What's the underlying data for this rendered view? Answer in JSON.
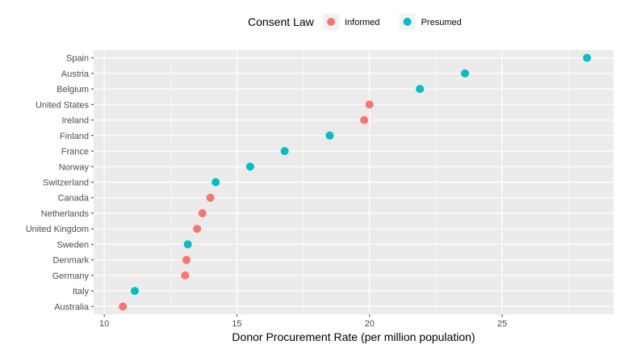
{
  "chart_data": {
    "type": "scatter",
    "title": "",
    "xlabel": "Donor Procurement Rate (per million population)",
    "ylabel": "",
    "xlim": [
      9.6,
      29.2
    ],
    "x_ticks": [
      10,
      15,
      20,
      25
    ],
    "grid": true,
    "legend": {
      "title": "Consent Law",
      "placement": "top",
      "entries": [
        {
          "name": "Informed",
          "color": "#F8766D"
        },
        {
          "name": "Presumed",
          "color": "#00BFC4"
        }
      ]
    },
    "categories": [
      "Spain",
      "Austria",
      "Belgium",
      "United States",
      "Ireland",
      "Finland",
      "France",
      "Norway",
      "Switzerland",
      "Canada",
      "Netherlands",
      "United Kingdom",
      "Sweden",
      "Denmark",
      "Germany",
      "Italy",
      "Australia"
    ],
    "series": [
      {
        "name": "Informed",
        "color": "#F8766D",
        "points": [
          {
            "country": "United States",
            "x": 20.0
          },
          {
            "country": "Ireland",
            "x": 19.8
          },
          {
            "country": "Canada",
            "x": 14.0
          },
          {
            "country": "Netherlands",
            "x": 13.7
          },
          {
            "country": "United Kingdom",
            "x": 13.5
          },
          {
            "country": "Denmark",
            "x": 13.1
          },
          {
            "country": "Germany",
            "x": 13.05
          },
          {
            "country": "Australia",
            "x": 10.7
          }
        ]
      },
      {
        "name": "Presumed",
        "color": "#00BFC4",
        "points": [
          {
            "country": "Spain",
            "x": 28.2
          },
          {
            "country": "Austria",
            "x": 23.6
          },
          {
            "country": "Belgium",
            "x": 21.9
          },
          {
            "country": "Finland",
            "x": 18.5
          },
          {
            "country": "France",
            "x": 16.8
          },
          {
            "country": "Norway",
            "x": 15.5
          },
          {
            "country": "Switzerland",
            "x": 14.2
          },
          {
            "country": "Sweden",
            "x": 13.15
          },
          {
            "country": "Italy",
            "x": 11.15
          }
        ]
      }
    ]
  }
}
